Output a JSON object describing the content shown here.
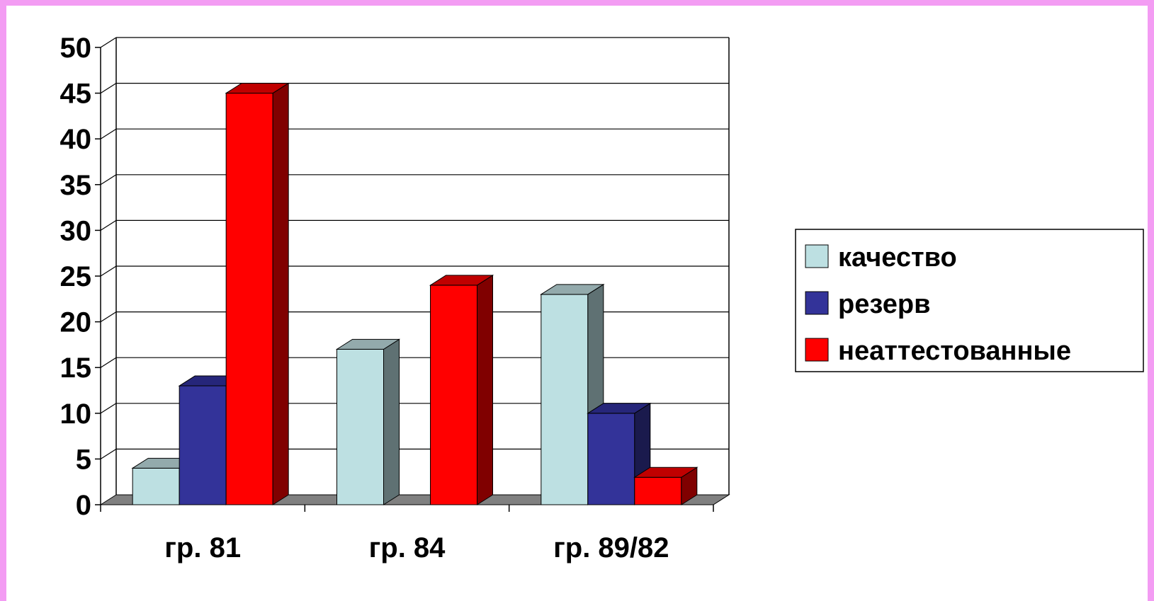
{
  "colors": {
    "page_border": "#f39cf3",
    "background": "#ffffff",
    "floor": "#808080",
    "grid": "#000000"
  },
  "chart_data": {
    "type": "bar",
    "style": "3d-clustered-column",
    "categories": [
      "гр. 81",
      "гр. 84",
      "гр. 89/82"
    ],
    "series": [
      {
        "name": "качество",
        "values": [
          4,
          17,
          23
        ],
        "color": "#bde0e2",
        "side_color": "#5f7173",
        "top_color": "#93aaac"
      },
      {
        "name": "резерв",
        "values": [
          13,
          0,
          10
        ],
        "color": "#333399",
        "side_color": "#1a1a4d",
        "top_color": "#26267a"
      },
      {
        "name": "неаттестованные",
        "values": [
          45,
          24,
          3
        ],
        "color": "#ff0000",
        "side_color": "#800000",
        "top_color": "#c00000"
      }
    ],
    "yticks": [
      "0",
      "5",
      "10",
      "15",
      "20",
      "25",
      "30",
      "35",
      "40",
      "45",
      "50"
    ],
    "ylim": [
      0,
      50
    ],
    "title": "",
    "xlabel": "",
    "ylabel": "",
    "grid": true,
    "legend_position": "right"
  }
}
